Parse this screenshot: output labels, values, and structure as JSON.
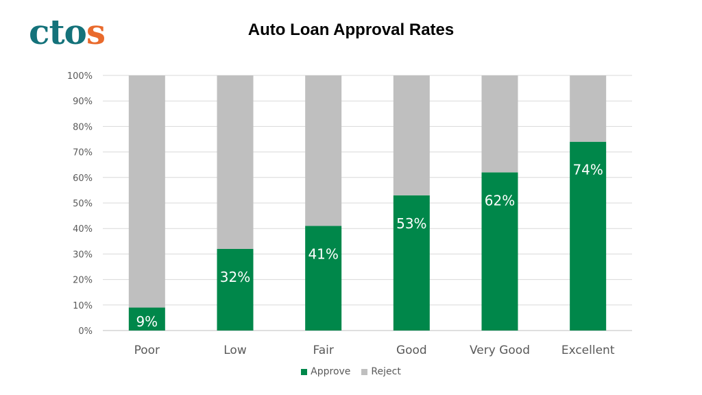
{
  "logo": {
    "main": "cto",
    "accent": "s"
  },
  "chart_data": {
    "type": "bar",
    "stacked": true,
    "title": "Auto Loan Approval Rates",
    "categories": [
      "Poor",
      "Low",
      "Fair",
      "Good",
      "Very Good",
      "Excellent"
    ],
    "series": [
      {
        "name": "Approve",
        "values": [
          9,
          32,
          41,
          53,
          62,
          74
        ],
        "color": "#00874a"
      },
      {
        "name": "Reject",
        "values": [
          91,
          68,
          59,
          47,
          38,
          26
        ],
        "color": "#bfbfbf"
      }
    ],
    "data_labels": [
      "9%",
      "32%",
      "41%",
      "53%",
      "62%",
      "74%"
    ],
    "y_ticks": [
      "0%",
      "10%",
      "20%",
      "30%",
      "40%",
      "50%",
      "60%",
      "70%",
      "80%",
      "90%",
      "100%"
    ],
    "ylim": [
      0,
      100
    ],
    "xlabel": "",
    "ylabel": "",
    "grid": true,
    "legend_position": "bottom"
  }
}
